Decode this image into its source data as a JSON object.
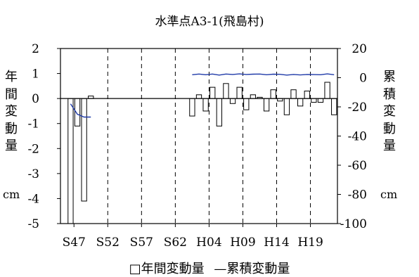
{
  "chart_data": {
    "type": "bar+line",
    "title": "水準点A3-1(飛島村)",
    "ylabel_left": "年間変動量",
    "ylabel_right": "累積変動量",
    "unit_left": "cm",
    "unit_right": "cm",
    "left_axis": {
      "min": -5,
      "max": 2,
      "ticks": [
        "2",
        "1",
        "0",
        "-1",
        "-2",
        "-3",
        "-4",
        "-5"
      ]
    },
    "right_axis": {
      "min": -100,
      "max": 20,
      "ticks": [
        "20",
        "0",
        "-20",
        "-40",
        "-60",
        "-80",
        "-100"
      ]
    },
    "x_tick_labels": [
      "S47",
      "S52",
      "S57",
      "S62",
      "H04",
      "H09",
      "H14",
      "H19"
    ],
    "grid": "vertical dashed",
    "legend": {
      "bar": "□年間変動量",
      "line": "—累積変動量"
    },
    "series": [
      {
        "name": "年間変動量",
        "type": "bar",
        "axis": "left",
        "values": [
          {
            "x": 1,
            "y": -5.0
          },
          {
            "x": 2,
            "y": -1.1
          },
          {
            "x": 3,
            "y": -4.1
          },
          {
            "x": 4,
            "y": 0.1
          },
          {
            "x": 19,
            "y": -0.7
          },
          {
            "x": 20,
            "y": 0.15
          },
          {
            "x": 21,
            "y": -0.5
          },
          {
            "x": 22,
            "y": 0.45
          },
          {
            "x": 23,
            "y": -1.1
          },
          {
            "x": 24,
            "y": 0.6
          },
          {
            "x": 25,
            "y": -0.2
          },
          {
            "x": 26,
            "y": 0.45
          },
          {
            "x": 27,
            "y": -0.45
          },
          {
            "x": 28,
            "y": 0.15
          },
          {
            "x": 29,
            "y": 0.05
          },
          {
            "x": 30,
            "y": -0.5
          },
          {
            "x": 31,
            "y": 0.35
          },
          {
            "x": 32,
            "y": -0.1
          },
          {
            "x": 33,
            "y": -0.65
          },
          {
            "x": 34,
            "y": 0.35
          },
          {
            "x": 35,
            "y": -0.3
          },
          {
            "x": 36,
            "y": 0.3
          },
          {
            "x": 37,
            "y": -0.15
          },
          {
            "x": 38,
            "y": -0.15
          },
          {
            "x": 39,
            "y": 0.65
          },
          {
            "x": 40,
            "y": -0.65
          }
        ]
      },
      {
        "name": "累積変動量",
        "type": "line",
        "axis": "right",
        "color": "#1f3aa8",
        "values": [
          {
            "x": 1,
            "y": -18
          },
          {
            "x": 2,
            "y": -25
          },
          {
            "x": 3,
            "y": -27
          },
          {
            "x": 4,
            "y": -27
          },
          {
            "x": 19,
            "y": 2
          },
          {
            "x": 20,
            "y": 2.5
          },
          {
            "x": 21,
            "y": 2
          },
          {
            "x": 22,
            "y": 2.5
          },
          {
            "x": 23,
            "y": 1.8
          },
          {
            "x": 24,
            "y": 2.5
          },
          {
            "x": 25,
            "y": 2.2
          },
          {
            "x": 26,
            "y": 2.6
          },
          {
            "x": 27,
            "y": 2.2
          },
          {
            "x": 28,
            "y": 2.4
          },
          {
            "x": 29,
            "y": 2.5
          },
          {
            "x": 30,
            "y": 2.0
          },
          {
            "x": 31,
            "y": 2.4
          },
          {
            "x": 32,
            "y": 2.3
          },
          {
            "x": 33,
            "y": 1.8
          },
          {
            "x": 34,
            "y": 2.2
          },
          {
            "x": 35,
            "y": 1.9
          },
          {
            "x": 36,
            "y": 2.2
          },
          {
            "x": 37,
            "y": 2.1
          },
          {
            "x": 38,
            "y": 2.0
          },
          {
            "x": 39,
            "y": 2.6
          },
          {
            "x": 40,
            "y": 2.0
          }
        ]
      }
    ]
  }
}
